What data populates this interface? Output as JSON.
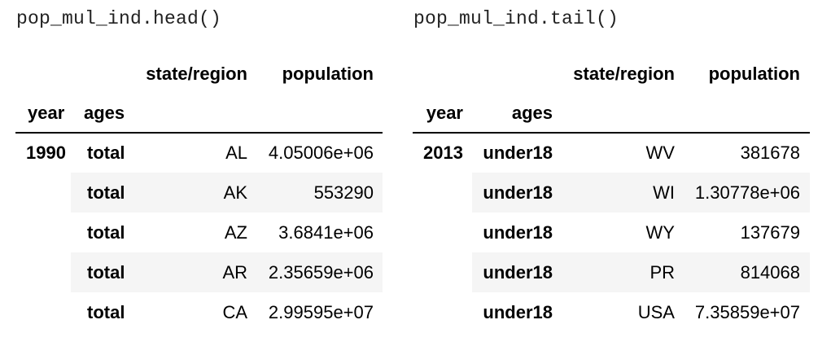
{
  "left": {
    "code": "pop_mul_ind.head()",
    "headers": {
      "state": "state/region",
      "population": "population",
      "year": "year",
      "ages": "ages"
    },
    "year_value": "1990",
    "rows": [
      {
        "ages": "total",
        "state": "AL",
        "population": "4.05006e+06"
      },
      {
        "ages": "total",
        "state": "AK",
        "population": "553290"
      },
      {
        "ages": "total",
        "state": "AZ",
        "population": "3.6841e+06"
      },
      {
        "ages": "total",
        "state": "AR",
        "population": "2.35659e+06"
      },
      {
        "ages": "total",
        "state": "CA",
        "population": "2.99595e+07"
      }
    ]
  },
  "right": {
    "code": "pop_mul_ind.tail()",
    "headers": {
      "state": "state/region",
      "population": "population",
      "year": "year",
      "ages": "ages"
    },
    "year_value": "2013",
    "rows": [
      {
        "ages": "under18",
        "state": "WV",
        "population": "381678"
      },
      {
        "ages": "under18",
        "state": "WI",
        "population": "1.30778e+06"
      },
      {
        "ages": "under18",
        "state": "WY",
        "population": "137679"
      },
      {
        "ages": "under18",
        "state": "PR",
        "population": "814068"
      },
      {
        "ages": "under18",
        "state": "USA",
        "population": "7.35859e+07"
      }
    ]
  },
  "colors": {
    "stripe": "#f5f5f5",
    "rule": "#000000",
    "code_text": "#222222"
  }
}
